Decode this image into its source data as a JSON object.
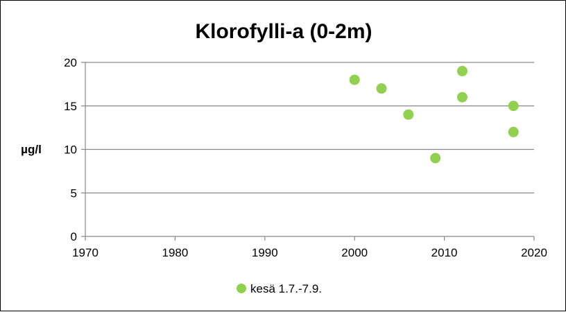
{
  "chart_data": {
    "type": "scatter",
    "title": "Klorofylli-a (0-2m)",
    "xlabel": "",
    "ylabel": "µg/l",
    "xlim": [
      1970,
      2020
    ],
    "ylim": [
      0,
      20
    ],
    "x_ticks": [
      "1970",
      "1980",
      "1990",
      "2000",
      "2010",
      "2020"
    ],
    "y_ticks": [
      "0",
      "5",
      "10",
      "15",
      "20"
    ],
    "grid": "horizontal",
    "legend_position": "bottom",
    "series": [
      {
        "name": "kesä 1.7.-7.9.",
        "color": "#92D050",
        "points": [
          {
            "x": 2000,
            "y": 18
          },
          {
            "x": 2003,
            "y": 17
          },
          {
            "x": 2006,
            "y": 14
          },
          {
            "x": 2009,
            "y": 9
          },
          {
            "x": 2012,
            "y": 19
          },
          {
            "x": 2012,
            "y": 16
          },
          {
            "x": 2017.7,
            "y": 15
          },
          {
            "x": 2017.7,
            "y": 12
          }
        ]
      }
    ]
  }
}
